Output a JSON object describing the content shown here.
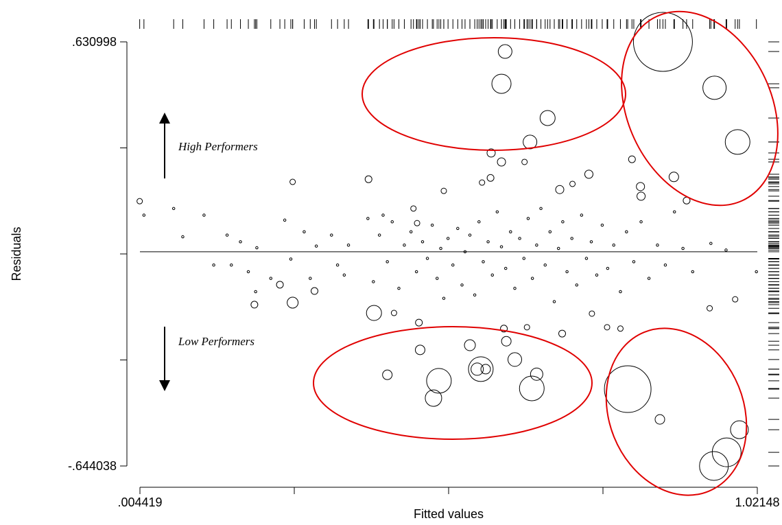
{
  "chart_data": {
    "type": "scatter",
    "x_label": "Fitted values",
    "y_label": "Residuals",
    "xlim": [
      0.004419,
      1.02148
    ],
    "ylim": [
      -0.644038,
      0.630998
    ],
    "xticks": [
      {
        "value": 0.004419,
        "label": ".004419"
      },
      {
        "value": 1.02148,
        "label": "1.02148"
      }
    ],
    "xticks_minor": [
      0.258684,
      0.51295,
      0.767215
    ],
    "yticks": [
      {
        "value": 0.630998,
        "label": ".630998"
      },
      {
        "value": -0.644038,
        "label": "-.644038"
      }
    ],
    "yticks_minor": [
      0.312239,
      -0.00652,
      -0.325279
    ],
    "hline": 0,
    "rug": true,
    "annotations": [
      "High Performers",
      "Low Performers"
    ],
    "series": [
      {
        "color": "#000000",
        "x": [
          0.866,
          0.951,
          0.989,
          0.606,
          0.6,
          0.676,
          0.647,
          0.583,
          0.6,
          0.884,
          0.829,
          0.83,
          0.815,
          0.905,
          0.744,
          0.696,
          0.582,
          0.568,
          0.381,
          0.256,
          0.004,
          0.505,
          0.638,
          0.717,
          0.455,
          0.461,
          0.256,
          0.39,
          0.412,
          0.466,
          0.497,
          0.488,
          0.548,
          0.566,
          0.56,
          0.574,
          0.622,
          0.65,
          0.658,
          0.608,
          0.604,
          0.464,
          0.808,
          0.861,
          0.992,
          0.971,
          0.95,
          0.193,
          0.235,
          0.292,
          0.7,
          0.774,
          0.796,
          0.749,
          0.985,
          0.943,
          0.642,
          0.423,
          0.011,
          0.06,
          0.075,
          0.11,
          0.126,
          0.148,
          0.155,
          0.17,
          0.183,
          0.195,
          0.197,
          0.22,
          0.243,
          0.253,
          0.275,
          0.285,
          0.295,
          0.32,
          0.33,
          0.341,
          0.348,
          0.38,
          0.389,
          0.399,
          0.405,
          0.412,
          0.42,
          0.431,
          0.44,
          0.451,
          0.46,
          0.47,
          0.478,
          0.486,
          0.494,
          0.5,
          0.505,
          0.512,
          0.52,
          0.528,
          0.535,
          0.54,
          0.548,
          0.556,
          0.563,
          0.57,
          0.578,
          0.585,
          0.593,
          0.6,
          0.607,
          0.615,
          0.622,
          0.63,
          0.637,
          0.644,
          0.651,
          0.658,
          0.665,
          0.672,
          0.68,
          0.687,
          0.694,
          0.701,
          0.708,
          0.716,
          0.724,
          0.732,
          0.74,
          0.748,
          0.757,
          0.766,
          0.775,
          0.785,
          0.796,
          0.806,
          0.818,
          0.83,
          0.843,
          0.857,
          0.87,
          0.885,
          0.899,
          0.915,
          0.945,
          0.97,
          1.02
        ],
        "y": [
          0.631,
          0.493,
          0.33,
          0.602,
          0.505,
          0.402,
          0.33,
          0.297,
          0.27,
          0.225,
          0.196,
          0.167,
          0.278,
          0.154,
          0.233,
          0.187,
          0.222,
          0.208,
          0.218,
          0.21,
          0.152,
          0.183,
          0.27,
          0.204,
          0.13,
          0.086,
          -0.153,
          -0.184,
          -0.37,
          -0.295,
          -0.388,
          -0.44,
          -0.281,
          -0.353,
          -0.353,
          -0.353,
          -0.324,
          -0.411,
          -0.368,
          -0.269,
          -0.231,
          -0.213,
          -0.413,
          -0.504,
          -0.535,
          -0.603,
          -0.644,
          -0.159,
          -0.099,
          -0.118,
          -0.246,
          -0.227,
          -0.231,
          -0.186,
          -0.143,
          -0.17,
          -0.227,
          -0.184,
          0.11,
          0.13,
          0.045,
          0.11,
          -0.04,
          0.05,
          -0.04,
          0.03,
          -0.06,
          -0.12,
          0.012,
          -0.08,
          0.095,
          -0.022,
          0.06,
          -0.08,
          0.017,
          0.05,
          -0.04,
          -0.07,
          0.02,
          0.1,
          -0.09,
          0.05,
          0.11,
          -0.03,
          0.09,
          -0.11,
          0.02,
          0.06,
          -0.06,
          0.03,
          -0.02,
          0.08,
          -0.08,
          0.01,
          -0.14,
          0.04,
          -0.04,
          0.07,
          -0.1,
          0.0,
          0.05,
          -0.13,
          0.09,
          -0.03,
          0.03,
          -0.07,
          0.12,
          0.015,
          -0.05,
          0.06,
          -0.11,
          0.04,
          -0.02,
          0.1,
          -0.08,
          0.02,
          0.13,
          -0.04,
          0.06,
          -0.15,
          0.01,
          0.09,
          -0.06,
          0.04,
          -0.1,
          0.11,
          -0.02,
          0.03,
          -0.07,
          0.08,
          -0.05,
          0.02,
          -0.12,
          0.06,
          -0.03,
          0.09,
          -0.08,
          0.02,
          -0.04,
          0.12,
          0.01,
          -0.06,
          0.025,
          0.005,
          -0.06
        ],
        "sizes": [
          1849,
          289,
          324,
          100,
          196,
          121,
          100,
          36,
          36,
          49,
          36,
          36,
          25,
          25,
          36,
          36,
          25,
          16,
          25,
          16,
          16,
          16,
          16,
          16,
          16,
          16,
          64,
          121,
          49,
          49,
          324,
          144,
          64,
          324,
          81,
          49,
          100,
          324,
          81,
          49,
          25,
          25,
          1156,
          49,
          169,
          441,
          441,
          25,
          25,
          25,
          25,
          16,
          16,
          16,
          16,
          16,
          16,
          16,
          3,
          3,
          3,
          3,
          3,
          3,
          3,
          3,
          3,
          3,
          3,
          3,
          3,
          3,
          3,
          3,
          3,
          3,
          3,
          3,
          3,
          3,
          3,
          3,
          3,
          3,
          3,
          3,
          3,
          3,
          3,
          3,
          3,
          3,
          3,
          3,
          3,
          3,
          3,
          3,
          3,
          3,
          3,
          3,
          3,
          3,
          3,
          3,
          3,
          3,
          3,
          3,
          3,
          3,
          3,
          3,
          3,
          3,
          3,
          3,
          3,
          3,
          3,
          3,
          3,
          3,
          3,
          3,
          3,
          3,
          3,
          3,
          3,
          3,
          3,
          3,
          3,
          3,
          3,
          3,
          3,
          3,
          3,
          3,
          3,
          3,
          3
        ]
      }
    ]
  }
}
